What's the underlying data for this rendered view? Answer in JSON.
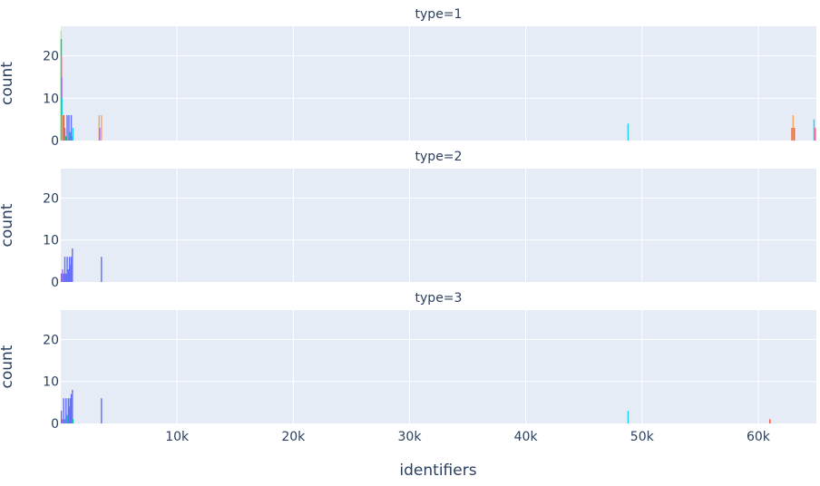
{
  "chart_data": {
    "type": "bar",
    "xlabel": "identifiers",
    "ylabel": "count",
    "xlim": [
      0,
      65000
    ],
    "ylim": [
      0,
      27
    ],
    "x_ticks": [
      {
        "value": 10000,
        "label": "10k"
      },
      {
        "value": 20000,
        "label": "20k"
      },
      {
        "value": 30000,
        "label": "30k"
      },
      {
        "value": 40000,
        "label": "40k"
      },
      {
        "value": 50000,
        "label": "50k"
      },
      {
        "value": 60000,
        "label": "60k"
      }
    ],
    "y_ticks": [
      {
        "value": 0,
        "label": "0"
      },
      {
        "value": 10,
        "label": "10"
      },
      {
        "value": 20,
        "label": "20"
      }
    ],
    "grid": true,
    "facets": [
      {
        "title": "type=1",
        "bars": [
          {
            "x": 20,
            "y": 26,
            "color": "#B6E880"
          },
          {
            "x": 40,
            "y": 24,
            "color": "#00CC96"
          },
          {
            "x": 60,
            "y": 20,
            "color": "#FF6692"
          },
          {
            "x": 80,
            "y": 15,
            "color": "#AB63FA"
          },
          {
            "x": 100,
            "y": 10,
            "color": "#19D3F3"
          },
          {
            "x": 150,
            "y": 6,
            "color": "#FFA15A"
          },
          {
            "x": 250,
            "y": 6,
            "color": "#EF553B"
          },
          {
            "x": 350,
            "y": 3,
            "color": "#AB63FA"
          },
          {
            "x": 450,
            "y": 1,
            "color": "#00CC96"
          },
          {
            "x": 550,
            "y": 6,
            "color": "#636EFA"
          },
          {
            "x": 650,
            "y": 1,
            "color": "#FECB52"
          },
          {
            "x": 700,
            "y": 6,
            "color": "#636EFA"
          },
          {
            "x": 800,
            "y": 2,
            "color": "#00CC96"
          },
          {
            "x": 900,
            "y": 6,
            "color": "#636EFA"
          },
          {
            "x": 1000,
            "y": 1,
            "color": "#00CC96"
          },
          {
            "x": 1050,
            "y": 3,
            "color": "#19D3F3"
          },
          {
            "x": 3300,
            "y": 6,
            "color": "#FFA15A"
          },
          {
            "x": 3350,
            "y": 3,
            "color": "#AB63FA"
          },
          {
            "x": 3500,
            "y": 6,
            "color": "#FFA15A"
          },
          {
            "x": 48800,
            "y": 4,
            "color": "#19D3F3"
          },
          {
            "x": 62900,
            "y": 3,
            "color": "#EF553B"
          },
          {
            "x": 63000,
            "y": 6,
            "color": "#FFA15A"
          },
          {
            "x": 63100,
            "y": 3,
            "color": "#EF553B"
          },
          {
            "x": 64800,
            "y": 5,
            "color": "#19D3F3"
          },
          {
            "x": 64900,
            "y": 3,
            "color": "#FF6692"
          }
        ]
      },
      {
        "title": "type=2",
        "bars": [
          {
            "x": 50,
            "y": 2,
            "color": "#636EFA"
          },
          {
            "x": 150,
            "y": 3,
            "color": "#AB63FA"
          },
          {
            "x": 250,
            "y": 2,
            "color": "#636EFA"
          },
          {
            "x": 350,
            "y": 6,
            "color": "#636EFA"
          },
          {
            "x": 450,
            "y": 2,
            "color": "#636EFA"
          },
          {
            "x": 550,
            "y": 6,
            "color": "#636EFA"
          },
          {
            "x": 650,
            "y": 3,
            "color": "#636EFA"
          },
          {
            "x": 750,
            "y": 6,
            "color": "#636EFA"
          },
          {
            "x": 850,
            "y": 4,
            "color": "#636EFA"
          },
          {
            "x": 900,
            "y": 6,
            "color": "#636EFA"
          },
          {
            "x": 1000,
            "y": 8,
            "color": "#636EFA"
          },
          {
            "x": 3500,
            "y": 6,
            "color": "#636EFA"
          }
        ]
      },
      {
        "title": "type=3",
        "bars": [
          {
            "x": 50,
            "y": 3,
            "color": "#636EFA"
          },
          {
            "x": 150,
            "y": 1,
            "color": "#AB63FA"
          },
          {
            "x": 250,
            "y": 6,
            "color": "#636EFA"
          },
          {
            "x": 350,
            "y": 1,
            "color": "#00CC96"
          },
          {
            "x": 450,
            "y": 6,
            "color": "#636EFA"
          },
          {
            "x": 550,
            "y": 2,
            "color": "#00CC96"
          },
          {
            "x": 650,
            "y": 6,
            "color": "#636EFA"
          },
          {
            "x": 700,
            "y": 4,
            "color": "#636EFA"
          },
          {
            "x": 800,
            "y": 6,
            "color": "#636EFA"
          },
          {
            "x": 850,
            "y": 3,
            "color": "#636EFA"
          },
          {
            "x": 900,
            "y": 7,
            "color": "#636EFA"
          },
          {
            "x": 1000,
            "y": 8,
            "color": "#636EFA"
          },
          {
            "x": 1050,
            "y": 1,
            "color": "#00CC96"
          },
          {
            "x": 3500,
            "y": 6,
            "color": "#636EFA"
          },
          {
            "x": 48800,
            "y": 3,
            "color": "#19D3F3"
          },
          {
            "x": 61000,
            "y": 1,
            "color": "#EF553B"
          }
        ]
      }
    ]
  }
}
